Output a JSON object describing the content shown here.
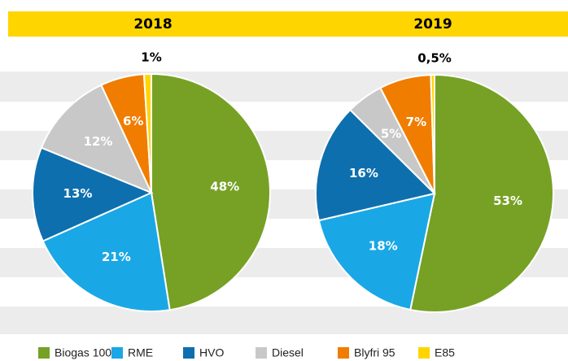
{
  "chart_data": [
    {
      "type": "pie",
      "title": "2018",
      "categories": [
        "Biogas 100",
        "RME",
        "HVO",
        "Diesel",
        "Blyfri 95",
        "E85"
      ],
      "values": [
        48,
        21,
        13,
        12,
        6,
        1
      ],
      "value_labels": [
        "48%",
        "21%",
        "13%",
        "12%",
        "6%",
        "1%"
      ],
      "colors": [
        "#76a125",
        "#1aa7e6",
        "#0e6fae",
        "#c8c8c8",
        "#f07d00",
        "#ffd500"
      ]
    },
    {
      "type": "pie",
      "title": "2019",
      "categories": [
        "Biogas 100",
        "RME",
        "HVO",
        "Diesel",
        "Blyfri 95",
        "E85"
      ],
      "values": [
        53,
        18,
        16,
        5,
        7,
        0.5
      ],
      "value_labels": [
        "53%",
        "18%",
        "16%",
        "5%",
        "7%",
        "0,5%"
      ],
      "colors": [
        "#76a125",
        "#1aa7e6",
        "#0e6fae",
        "#c8c8c8",
        "#f07d00",
        "#ffd500"
      ]
    }
  ]
}
